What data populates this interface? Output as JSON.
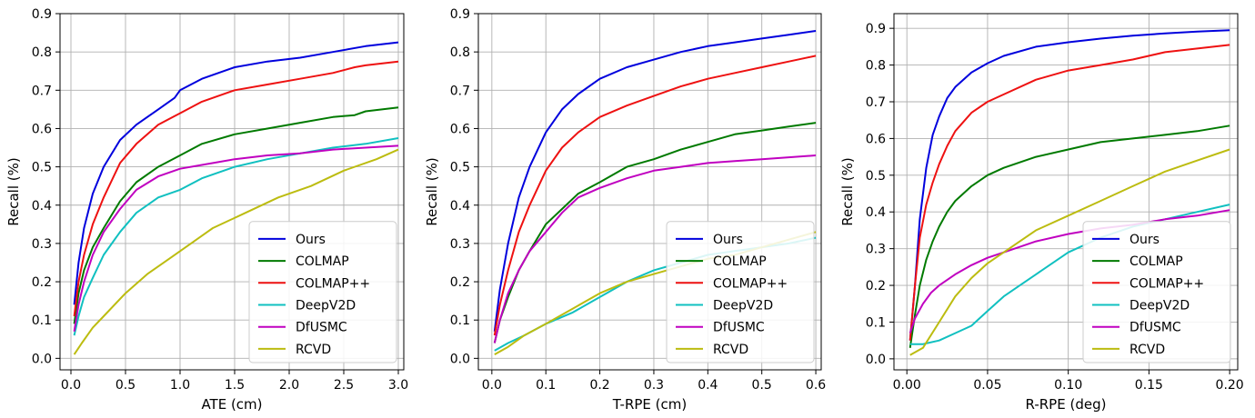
{
  "colors": {
    "Ours": "#0000dd",
    "COLMAP": "#007a00",
    "COLMAP++": "#ee1111",
    "DeepV2D": "#10c0c0",
    "DfUSMC": "#c000c0",
    "RCVD": "#bcbc10"
  },
  "chart_data": [
    {
      "type": "line",
      "xlabel": "ATE (cm)",
      "ylabel": "Recall (%)",
      "xlim": [
        -0.1,
        3.05
      ],
      "ylim": [
        -0.03,
        0.9
      ],
      "xticks": [
        "0.0",
        "0.5",
        "1.0",
        "1.5",
        "2.0",
        "2.5",
        "3.0"
      ],
      "yticks": [
        "0.0",
        "0.1",
        "0.2",
        "0.3",
        "0.4",
        "0.5",
        "0.6",
        "0.7",
        "0.8",
        "0.9"
      ],
      "grid": true,
      "legend": "bottom-right",
      "series": [
        {
          "name": "Ours",
          "x": [
            0.03,
            0.07,
            0.12,
            0.2,
            0.3,
            0.45,
            0.6,
            0.8,
            0.95,
            1.0,
            1.2,
            1.5,
            1.8,
            2.1,
            2.4,
            2.7,
            3.0
          ],
          "y": [
            0.14,
            0.25,
            0.34,
            0.43,
            0.5,
            0.57,
            0.61,
            0.65,
            0.68,
            0.7,
            0.73,
            0.76,
            0.775,
            0.785,
            0.8,
            0.815,
            0.825
          ]
        },
        {
          "name": "COLMAP",
          "x": [
            0.03,
            0.07,
            0.12,
            0.2,
            0.3,
            0.45,
            0.6,
            0.8,
            1.0,
            1.2,
            1.5,
            1.8,
            2.1,
            2.4,
            2.6,
            2.7,
            3.0
          ],
          "y": [
            0.09,
            0.17,
            0.23,
            0.29,
            0.34,
            0.41,
            0.46,
            0.5,
            0.53,
            0.56,
            0.585,
            0.6,
            0.615,
            0.63,
            0.635,
            0.645,
            0.655
          ]
        },
        {
          "name": "COLMAP++",
          "x": [
            0.03,
            0.07,
            0.12,
            0.2,
            0.3,
            0.45,
            0.6,
            0.8,
            1.0,
            1.2,
            1.5,
            1.8,
            2.1,
            2.4,
            2.6,
            2.7,
            3.0
          ],
          "y": [
            0.11,
            0.2,
            0.27,
            0.35,
            0.42,
            0.51,
            0.56,
            0.61,
            0.64,
            0.67,
            0.7,
            0.715,
            0.73,
            0.745,
            0.76,
            0.765,
            0.775
          ]
        },
        {
          "name": "DeepV2D",
          "x": [
            0.03,
            0.07,
            0.12,
            0.2,
            0.3,
            0.45,
            0.6,
            0.8,
            1.0,
            1.2,
            1.5,
            1.8,
            2.1,
            2.4,
            2.7,
            3.0
          ],
          "y": [
            0.06,
            0.11,
            0.16,
            0.21,
            0.27,
            0.33,
            0.38,
            0.42,
            0.44,
            0.47,
            0.5,
            0.52,
            0.535,
            0.55,
            0.56,
            0.575
          ]
        },
        {
          "name": "DfUSMC",
          "x": [
            0.03,
            0.07,
            0.12,
            0.2,
            0.3,
            0.45,
            0.6,
            0.8,
            1.0,
            1.2,
            1.5,
            1.8,
            2.1,
            2.4,
            2.7,
            3.0
          ],
          "y": [
            0.07,
            0.14,
            0.2,
            0.27,
            0.33,
            0.39,
            0.44,
            0.475,
            0.495,
            0.505,
            0.52,
            0.53,
            0.535,
            0.545,
            0.55,
            0.555
          ]
        },
        {
          "name": "RCVD",
          "x": [
            0.03,
            0.1,
            0.2,
            0.3,
            0.4,
            0.5,
            0.7,
            0.9,
            1.1,
            1.3,
            1.6,
            1.9,
            2.2,
            2.5,
            2.8,
            3.0
          ],
          "y": [
            0.01,
            0.04,
            0.08,
            0.11,
            0.14,
            0.17,
            0.22,
            0.26,
            0.3,
            0.34,
            0.38,
            0.42,
            0.45,
            0.49,
            0.52,
            0.545
          ]
        }
      ]
    },
    {
      "type": "line",
      "xlabel": "T-RPE (cm)",
      "ylabel": "Recall (%)",
      "xlim": [
        -0.025,
        0.61
      ],
      "ylim": [
        -0.03,
        0.9
      ],
      "xticks": [
        "0.0",
        "0.1",
        "0.2",
        "0.3",
        "0.4",
        "0.5",
        "0.6"
      ],
      "yticks": [
        "0.0",
        "0.1",
        "0.2",
        "0.3",
        "0.4",
        "0.5",
        "0.6",
        "0.7",
        "0.8",
        "0.9"
      ],
      "grid": true,
      "legend": "bottom-right",
      "series": [
        {
          "name": "Ours",
          "x": [
            0.005,
            0.015,
            0.03,
            0.05,
            0.07,
            0.1,
            0.13,
            0.16,
            0.2,
            0.25,
            0.3,
            0.35,
            0.4,
            0.45,
            0.5,
            0.55,
            0.6
          ],
          "y": [
            0.07,
            0.18,
            0.3,
            0.42,
            0.5,
            0.59,
            0.65,
            0.69,
            0.73,
            0.76,
            0.78,
            0.8,
            0.815,
            0.825,
            0.835,
            0.845,
            0.855
          ]
        },
        {
          "name": "COLMAP",
          "x": [
            0.005,
            0.015,
            0.03,
            0.05,
            0.07,
            0.1,
            0.13,
            0.16,
            0.2,
            0.25,
            0.3,
            0.35,
            0.4,
            0.45,
            0.5,
            0.55,
            0.6
          ],
          "y": [
            0.04,
            0.1,
            0.16,
            0.23,
            0.28,
            0.35,
            0.39,
            0.43,
            0.46,
            0.5,
            0.52,
            0.545,
            0.565,
            0.585,
            0.595,
            0.605,
            0.615
          ]
        },
        {
          "name": "COLMAP++",
          "x": [
            0.005,
            0.015,
            0.03,
            0.05,
            0.07,
            0.1,
            0.13,
            0.16,
            0.2,
            0.25,
            0.3,
            0.35,
            0.4,
            0.45,
            0.5,
            0.55,
            0.6
          ],
          "y": [
            0.06,
            0.14,
            0.23,
            0.33,
            0.4,
            0.49,
            0.55,
            0.59,
            0.63,
            0.66,
            0.685,
            0.71,
            0.73,
            0.745,
            0.76,
            0.775,
            0.79
          ]
        },
        {
          "name": "DeepV2D",
          "x": [
            0.005,
            0.03,
            0.06,
            0.1,
            0.15,
            0.2,
            0.25,
            0.3,
            0.35,
            0.4,
            0.45,
            0.5,
            0.55,
            0.6
          ],
          "y": [
            0.02,
            0.04,
            0.06,
            0.09,
            0.12,
            0.16,
            0.2,
            0.23,
            0.25,
            0.27,
            0.28,
            0.29,
            0.3,
            0.315
          ]
        },
        {
          "name": "DfUSMC",
          "x": [
            0.005,
            0.015,
            0.03,
            0.05,
            0.07,
            0.1,
            0.13,
            0.16,
            0.2,
            0.25,
            0.3,
            0.35,
            0.4,
            0.45,
            0.5,
            0.55,
            0.6
          ],
          "y": [
            0.04,
            0.1,
            0.17,
            0.23,
            0.28,
            0.33,
            0.38,
            0.42,
            0.445,
            0.47,
            0.49,
            0.5,
            0.51,
            0.515,
            0.52,
            0.525,
            0.53
          ]
        },
        {
          "name": "RCVD",
          "x": [
            0.005,
            0.03,
            0.06,
            0.1,
            0.15,
            0.2,
            0.25,
            0.3,
            0.35,
            0.4,
            0.45,
            0.5,
            0.55,
            0.6
          ],
          "y": [
            0.01,
            0.03,
            0.06,
            0.09,
            0.13,
            0.17,
            0.2,
            0.22,
            0.24,
            0.26,
            0.27,
            0.29,
            0.31,
            0.33
          ]
        }
      ]
    },
    {
      "type": "line",
      "xlabel": "R-RPE (deg)",
      "ylabel": "Recall (%)",
      "xlim": [
        -0.008,
        0.205
      ],
      "ylim": [
        -0.03,
        0.94
      ],
      "xticks": [
        "0.00",
        "0.05",
        "0.10",
        "0.15",
        "0.20"
      ],
      "yticks": [
        "0.0",
        "0.1",
        "0.2",
        "0.3",
        "0.4",
        "0.5",
        "0.6",
        "0.7",
        "0.8",
        "0.9"
      ],
      "grid": true,
      "legend": "bottom-right",
      "series": [
        {
          "name": "Ours",
          "x": [
            0.002,
            0.005,
            0.008,
            0.012,
            0.016,
            0.02,
            0.025,
            0.03,
            0.04,
            0.05,
            0.06,
            0.08,
            0.1,
            0.12,
            0.14,
            0.16,
            0.18,
            0.2
          ],
          "y": [
            0.05,
            0.2,
            0.38,
            0.52,
            0.61,
            0.66,
            0.71,
            0.74,
            0.78,
            0.805,
            0.825,
            0.85,
            0.862,
            0.872,
            0.88,
            0.886,
            0.891,
            0.895
          ]
        },
        {
          "name": "COLMAP",
          "x": [
            0.002,
            0.005,
            0.008,
            0.012,
            0.016,
            0.02,
            0.025,
            0.03,
            0.04,
            0.05,
            0.06,
            0.08,
            0.1,
            0.12,
            0.14,
            0.16,
            0.18,
            0.2
          ],
          "y": [
            0.03,
            0.12,
            0.2,
            0.27,
            0.32,
            0.36,
            0.4,
            0.43,
            0.47,
            0.5,
            0.52,
            0.55,
            0.57,
            0.59,
            0.6,
            0.61,
            0.62,
            0.635
          ]
        },
        {
          "name": "COLMAP++",
          "x": [
            0.002,
            0.005,
            0.008,
            0.012,
            0.016,
            0.02,
            0.025,
            0.03,
            0.04,
            0.05,
            0.06,
            0.08,
            0.1,
            0.12,
            0.14,
            0.16,
            0.18,
            0.2
          ],
          "y": [
            0.05,
            0.2,
            0.33,
            0.42,
            0.48,
            0.53,
            0.58,
            0.62,
            0.67,
            0.7,
            0.72,
            0.76,
            0.785,
            0.8,
            0.815,
            0.835,
            0.845,
            0.855
          ]
        },
        {
          "name": "DeepV2D",
          "x": [
            0.002,
            0.01,
            0.02,
            0.03,
            0.04,
            0.05,
            0.06,
            0.07,
            0.08,
            0.1,
            0.12,
            0.14,
            0.16,
            0.18,
            0.2
          ],
          "y": [
            0.04,
            0.04,
            0.05,
            0.07,
            0.09,
            0.13,
            0.17,
            0.2,
            0.23,
            0.29,
            0.33,
            0.36,
            0.38,
            0.4,
            0.42
          ]
        },
        {
          "name": "DfUSMC",
          "x": [
            0.002,
            0.005,
            0.01,
            0.015,
            0.02,
            0.03,
            0.04,
            0.05,
            0.06,
            0.08,
            0.1,
            0.12,
            0.14,
            0.16,
            0.18,
            0.2
          ],
          "y": [
            0.07,
            0.11,
            0.15,
            0.18,
            0.2,
            0.23,
            0.255,
            0.275,
            0.29,
            0.32,
            0.34,
            0.355,
            0.365,
            0.38,
            0.39,
            0.405
          ]
        },
        {
          "name": "RCVD",
          "x": [
            0.002,
            0.01,
            0.02,
            0.03,
            0.04,
            0.05,
            0.06,
            0.08,
            0.1,
            0.12,
            0.14,
            0.16,
            0.18,
            0.2
          ],
          "y": [
            0.01,
            0.03,
            0.1,
            0.17,
            0.22,
            0.26,
            0.29,
            0.35,
            0.39,
            0.43,
            0.47,
            0.51,
            0.54,
            0.57
          ]
        }
      ]
    }
  ]
}
